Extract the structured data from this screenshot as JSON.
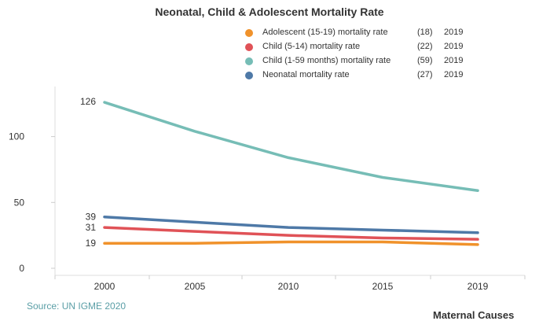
{
  "title": "Neonatal, Child & Adolescent Mortality Rate",
  "legend": [
    {
      "label": "Adolescent (15-19) mortality rate",
      "value": "(18)",
      "year": "2019",
      "color": "#f0922b"
    },
    {
      "label": "Child (5-14) mortality rate",
      "value": "(22)",
      "year": "2019",
      "color": "#e05257"
    },
    {
      "label": "Child (1-59 months) mortality rate",
      "value": "(59)",
      "year": "2019",
      "color": "#76bdb6"
    },
    {
      "label": "Neonatal mortality rate",
      "value": "(27)",
      "year": "2019",
      "color": "#4e79a7"
    }
  ],
  "source": "Source: UN IGME 2020",
  "next_section": "Maternal Causes",
  "chart_data": {
    "type": "line",
    "title": "Neonatal, Child & Adolescent Mortality Rate",
    "x": [
      2000,
      2005,
      2010,
      2015,
      2019
    ],
    "xticks": [
      "2000",
      "2005",
      "2010",
      "2015",
      "2019"
    ],
    "yticks": [
      0,
      50,
      100
    ],
    "ylim": [
      0,
      140
    ],
    "series": [
      {
        "name": "Child (1-59 months) mortality rate",
        "color": "#76bdb6",
        "values": [
          126,
          104,
          84,
          69,
          59
        ]
      },
      {
        "name": "Neonatal mortality rate",
        "color": "#4e79a7",
        "values": [
          39,
          35,
          31,
          29,
          27
        ]
      },
      {
        "name": "Child (5-14) mortality rate",
        "color": "#e05257",
        "values": [
          31,
          28,
          25,
          23,
          22
        ]
      },
      {
        "name": "Adolescent (15-19) mortality rate",
        "color": "#f0922b",
        "values": [
          19,
          19,
          20,
          20,
          18
        ]
      }
    ],
    "start_labels": [
      {
        "series": "Child (1-59 months) mortality rate",
        "text": "126"
      },
      {
        "series": "Neonatal mortality rate",
        "text": "39"
      },
      {
        "series": "Child (5-14) mortality rate",
        "text": "31"
      },
      {
        "series": "Adolescent (15-19) mortality rate",
        "text": "19"
      }
    ]
  }
}
